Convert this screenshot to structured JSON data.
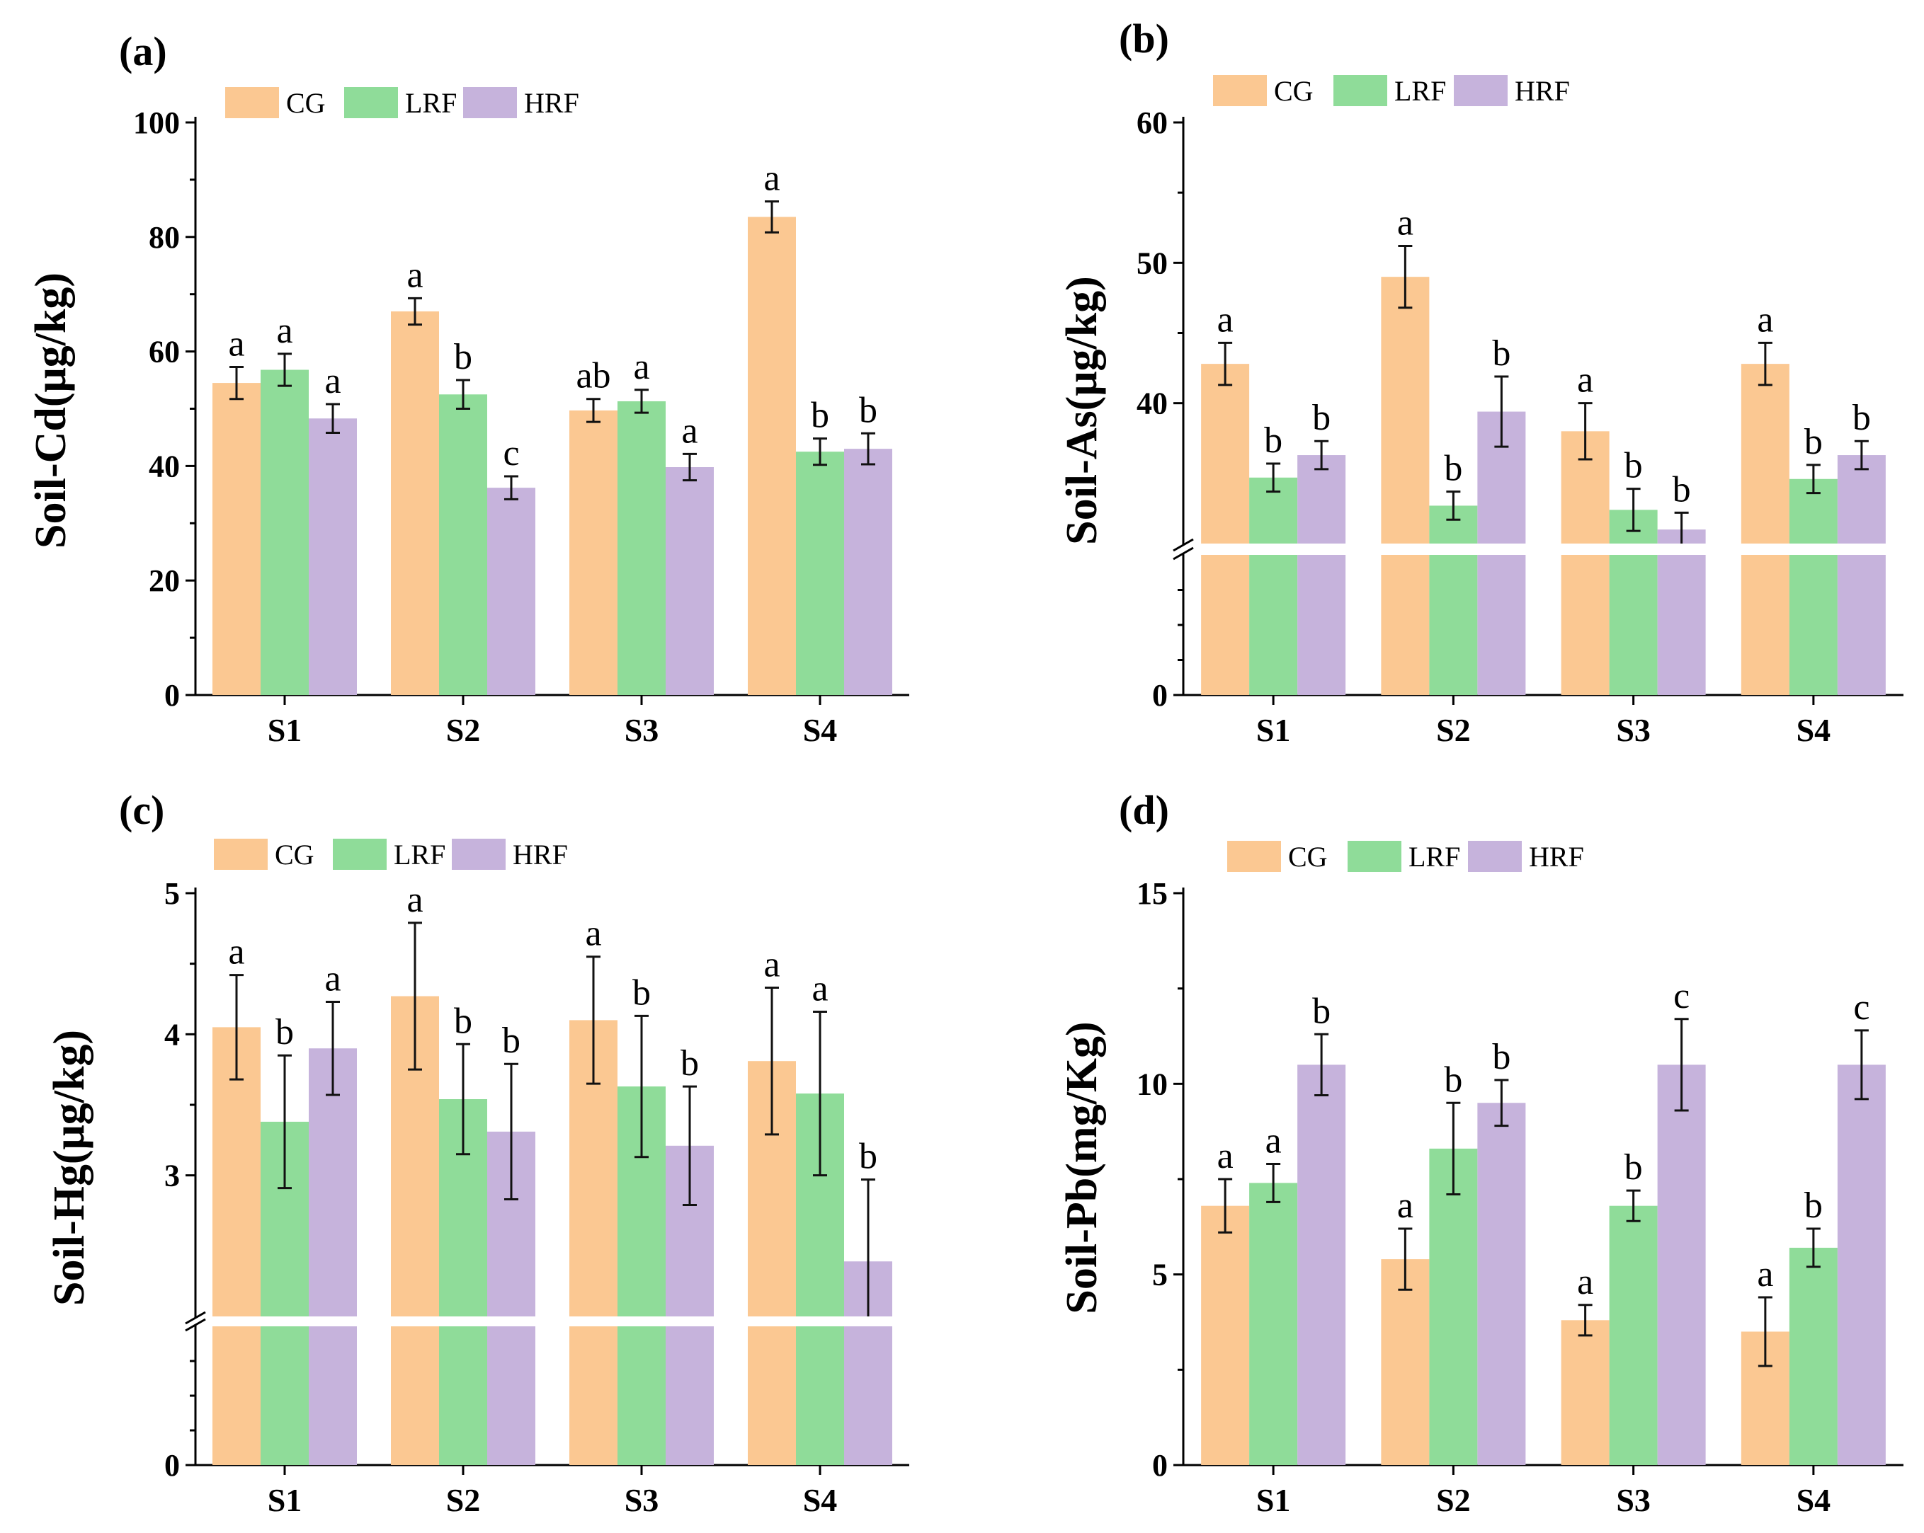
{
  "colors": {
    "CG": "#fbc892",
    "LRF": "#8fdc99",
    "HRF": "#c6b3dc"
  },
  "chart_data": [
    {
      "type": "bar",
      "panel": "(a)",
      "ylabel": "Soil-Cd(μg/kg)",
      "categories": [
        "S1",
        "S2",
        "S3",
        "S4"
      ],
      "ylim": [
        0,
        100
      ],
      "yticks": [
        0,
        20,
        40,
        60,
        80,
        100
      ],
      "break": null,
      "series": [
        {
          "name": "CG",
          "values": [
            54.5,
            67,
            49.7,
            83.5
          ],
          "errors": [
            2.8,
            2.3,
            2.0,
            2.7
          ],
          "letters": [
            "a",
            "a",
            "ab",
            "a"
          ]
        },
        {
          "name": "LRF",
          "values": [
            56.8,
            52.5,
            51.3,
            42.5
          ],
          "errors": [
            2.8,
            2.5,
            2.0,
            2.3
          ],
          "letters": [
            "a",
            "b",
            "a",
            "b"
          ]
        },
        {
          "name": "HRF",
          "values": [
            48.3,
            36.2,
            39.8,
            43.0
          ],
          "errors": [
            2.5,
            2.0,
            2.3,
            2.7
          ],
          "letters": [
            "a",
            "c",
            "a",
            "b"
          ]
        }
      ]
    },
    {
      "type": "bar",
      "panel": "(b)",
      "ylabel": "Soil-As(μg/kg)",
      "categories": [
        "S1",
        "S2",
        "S3",
        "S4"
      ],
      "ylim": [
        0,
        60
      ],
      "yticks": [
        0,
        40,
        50,
        60
      ],
      "break": {
        "low": 10,
        "high": 30
      },
      "series": [
        {
          "name": "CG",
          "values": [
            42.8,
            49.0,
            38.0,
            42.8
          ],
          "errors": [
            1.5,
            2.2,
            2.0,
            1.5
          ],
          "letters": [
            "a",
            "a",
            "a",
            "a"
          ]
        },
        {
          "name": "LRF",
          "values": [
            34.7,
            32.7,
            32.4,
            34.6
          ],
          "errors": [
            1.0,
            1.0,
            1.5,
            1.0
          ],
          "letters": [
            "b",
            "b",
            "b",
            "b"
          ]
        },
        {
          "name": "HRF",
          "values": [
            36.3,
            39.4,
            31.0,
            36.3
          ],
          "errors": [
            1.0,
            2.5,
            1.2,
            1.0
          ],
          "letters": [
            "b",
            "b",
            "b",
            "b"
          ]
        }
      ]
    },
    {
      "type": "bar",
      "panel": "(c)",
      "ylabel": "Soil-Hg(μg/kg)",
      "categories": [
        "S1",
        "S2",
        "S3",
        "S4"
      ],
      "ylim": [
        0,
        5
      ],
      "yticks": [
        0,
        3,
        4,
        5
      ],
      "break": {
        "low": 1,
        "high": 2
      },
      "series": [
        {
          "name": "CG",
          "values": [
            4.05,
            4.27,
            4.1,
            3.81
          ],
          "errors": [
            0.37,
            0.52,
            0.45,
            0.52
          ],
          "letters": [
            "a",
            "a",
            "a",
            "a"
          ]
        },
        {
          "name": "LRF",
          "values": [
            3.38,
            3.54,
            3.63,
            3.58
          ],
          "errors": [
            0.47,
            0.39,
            0.5,
            0.58
          ],
          "letters": [
            "b",
            "b",
            "b",
            "a"
          ]
        },
        {
          "name": "HRF",
          "values": [
            3.9,
            3.31,
            3.21,
            2.39
          ],
          "errors": [
            0.33,
            0.48,
            0.42,
            0.58
          ],
          "letters": [
            "a",
            "b",
            "b",
            "b"
          ]
        }
      ]
    },
    {
      "type": "bar",
      "panel": "(d)",
      "ylabel": "Soil-Pb(mg/Kg)",
      "categories": [
        "S1",
        "S2",
        "S3",
        "S4"
      ],
      "ylim": [
        0,
        15
      ],
      "yticks": [
        0,
        5,
        10,
        15
      ],
      "break": null,
      "series": [
        {
          "name": "CG",
          "values": [
            6.8,
            5.4,
            3.8,
            3.5
          ],
          "errors": [
            0.7,
            0.8,
            0.4,
            0.9
          ],
          "letters": [
            "a",
            "a",
            "a",
            "a"
          ]
        },
        {
          "name": "LRF",
          "values": [
            7.4,
            8.3,
            6.8,
            5.7
          ],
          "errors": [
            0.5,
            1.2,
            0.4,
            0.5
          ],
          "letters": [
            "a",
            "b",
            "b",
            "b"
          ]
        },
        {
          "name": "HRF",
          "values": [
            10.5,
            9.5,
            10.5,
            10.5
          ],
          "errors": [
            0.8,
            0.6,
            1.2,
            0.9
          ],
          "letters": [
            "b",
            "b",
            "c",
            "c"
          ]
        }
      ]
    }
  ]
}
